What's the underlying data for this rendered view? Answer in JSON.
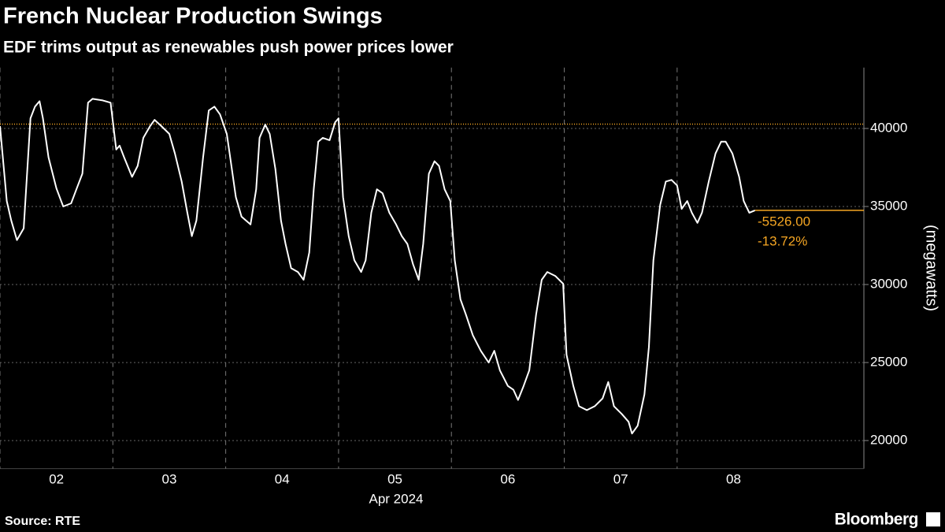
{
  "chart_data": {
    "type": "line",
    "title": "French Nuclear Production Swings",
    "subtitle": "EDF trims output as renewables push power prices lower",
    "x_period_label": "Apr 2024",
    "y_axis_label": "(megawatts)",
    "source": "Source: RTE",
    "brand": "Bloomberg",
    "reference_value": 40277,
    "annotations": [
      "-5526.00",
      "-13.72%"
    ],
    "reference_color": "#f5a623",
    "xlim": [
      2,
      9.655
    ],
    "ylim": [
      18200,
      43900
    ],
    "xticks": [
      {
        "value": 2,
        "label": "02"
      },
      {
        "value": 3,
        "label": "03"
      },
      {
        "value": 4,
        "label": "04"
      },
      {
        "value": 5,
        "label": "05"
      },
      {
        "value": 6,
        "label": "06"
      },
      {
        "value": 7,
        "label": "07"
      },
      {
        "value": 8,
        "label": "08"
      }
    ],
    "yticks": [
      20000,
      25000,
      30000,
      35000,
      40000
    ],
    "grid": true,
    "series": [
      {
        "name": "Nuclear production",
        "color": "#ffffff",
        "x": [
          2.0,
          2.06,
          2.1,
          2.15,
          2.21,
          2.27,
          2.31,
          2.35,
          2.38,
          2.43,
          2.5,
          2.56,
          2.63,
          2.68,
          2.73,
          2.78,
          2.82,
          2.91,
          2.98,
          3.03,
          3.06,
          3.1,
          3.17,
          3.22,
          3.27,
          3.33,
          3.37,
          3.43,
          3.5,
          3.55,
          3.61,
          3.66,
          3.7,
          3.74,
          3.8,
          3.85,
          3.9,
          3.95,
          4.01,
          4.04,
          4.09,
          4.14,
          4.22,
          4.27,
          4.3,
          4.35,
          4.39,
          4.44,
          4.49,
          4.53,
          4.58,
          4.64,
          4.69,
          4.74,
          4.78,
          4.82,
          4.86,
          4.92,
          4.97,
          5.0,
          5.04,
          5.09,
          5.14,
          5.2,
          5.24,
          5.29,
          5.34,
          5.39,
          5.45,
          5.51,
          5.56,
          5.61,
          5.66,
          5.71,
          5.75,
          5.8,
          5.85,
          5.89,
          5.94,
          5.99,
          6.03,
          6.08,
          6.13,
          6.19,
          6.26,
          6.33,
          6.38,
          6.43,
          6.5,
          6.55,
          6.59,
          6.64,
          6.69,
          6.75,
          6.8,
          6.85,
          6.92,
          6.99,
          7.02,
          7.08,
          7.13,
          7.2,
          7.27,
          7.34,
          7.39,
          7.44,
          7.51,
          7.57,
          7.6,
          7.65,
          7.71,
          7.75,
          7.79,
          7.85,
          7.9,
          7.95,
          8.0,
          8.04,
          8.09,
          8.13,
          8.18,
          8.22,
          8.28,
          8.34,
          8.39,
          8.43,
          8.49,
          8.55,
          8.59,
          8.64,
          8.69
        ],
        "values": [
          40150,
          35350,
          34100,
          32850,
          33600,
          40650,
          41400,
          41750,
          40650,
          38150,
          36150,
          35000,
          35200,
          36150,
          37100,
          41650,
          41900,
          41800,
          41650,
          38650,
          38900,
          38150,
          36900,
          37600,
          39400,
          40150,
          40550,
          40150,
          39650,
          38400,
          36600,
          34600,
          33100,
          34100,
          38150,
          41150,
          41400,
          40900,
          39650,
          38150,
          35600,
          34350,
          33850,
          36100,
          39400,
          40250,
          39650,
          37400,
          34100,
          32600,
          31050,
          30800,
          30300,
          32050,
          36100,
          39150,
          39400,
          39250,
          40400,
          40650,
          35600,
          33100,
          31550,
          30800,
          31550,
          34600,
          36100,
          35850,
          34600,
          33850,
          33100,
          32600,
          31300,
          30300,
          32600,
          37100,
          37900,
          37600,
          36100,
          35350,
          31550,
          29050,
          28050,
          26750,
          25750,
          25000,
          25750,
          24500,
          23500,
          23250,
          22600,
          23500,
          24500,
          28050,
          30300,
          30800,
          30550,
          30050,
          25500,
          23500,
          22200,
          21950,
          22200,
          22700,
          23750,
          22200,
          21700,
          21200,
          20450,
          20950,
          22950,
          26000,
          31550,
          35100,
          36600,
          36700,
          36350,
          34850,
          35350,
          34600,
          33950,
          34600,
          36600,
          38400,
          39150,
          39150,
          38400,
          36900,
          35350,
          34600,
          34751
        ]
      }
    ]
  }
}
